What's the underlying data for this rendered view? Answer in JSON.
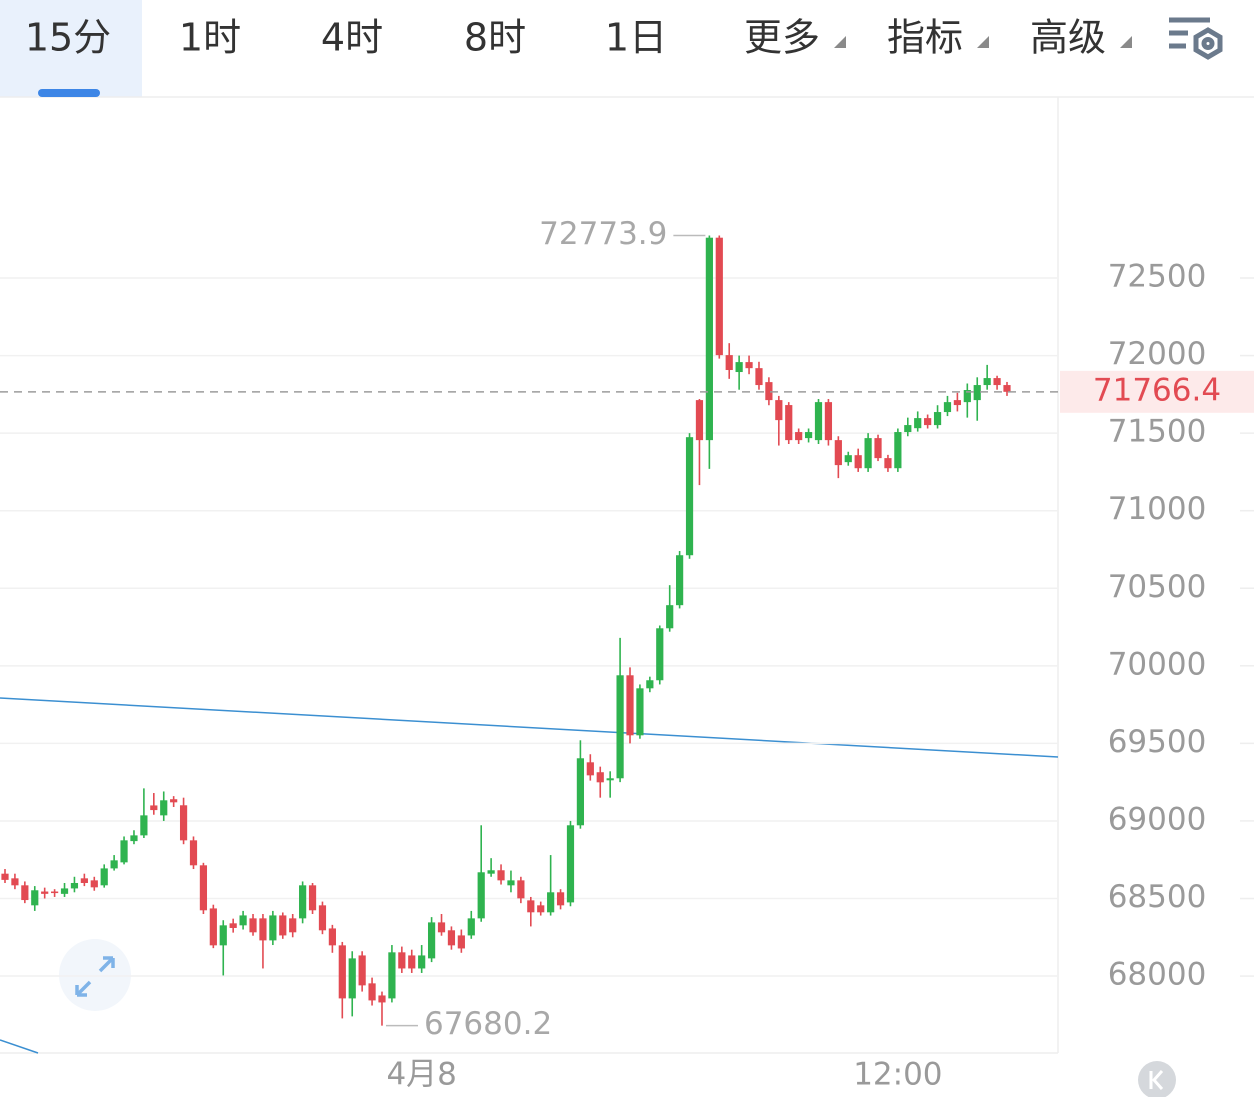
{
  "tabs": [
    {
      "label": "15分"
    },
    {
      "label": "1时"
    },
    {
      "label": "4时"
    },
    {
      "label": "8时"
    },
    {
      "label": "1日"
    },
    {
      "label": "更多",
      "dropdown": true
    },
    {
      "label": "指标",
      "dropdown": true
    },
    {
      "label": "高级",
      "dropdown": true
    }
  ],
  "active_tab": 0,
  "chart_data": {
    "type": "candlestick",
    "categories": [
      null,
      null,
      null,
      null,
      null,
      null,
      null,
      null,
      null,
      null,
      null,
      null,
      null,
      null,
      null,
      null,
      null,
      null,
      null,
      null,
      null,
      null,
      null,
      null,
      null,
      null,
      null,
      null,
      null,
      null,
      null,
      null,
      null,
      null,
      null,
      null,
      null,
      null,
      null,
      null,
      null,
      null,
      "4月8",
      null,
      null,
      null,
      null,
      null,
      null,
      null,
      null,
      null,
      null,
      null,
      null,
      null,
      null,
      null,
      null,
      null,
      null,
      null,
      null,
      null,
      null,
      null,
      null,
      null,
      null,
      null,
      null,
      null,
      null,
      null,
      null,
      null,
      null,
      null,
      null,
      null,
      null,
      null,
      null,
      null,
      null,
      null,
      null,
      null,
      null,
      null,
      "12:00",
      null,
      null,
      null,
      null,
      null,
      null,
      null,
      null,
      null,
      null,
      null
    ],
    "open": [
      68660,
      68630,
      68585,
      68456,
      68545,
      68545,
      68530,
      68565,
      68630,
      68617,
      68585,
      68694,
      68733,
      68870,
      68907,
      69100,
      69036,
      69140,
      69101,
      68875,
      68714,
      68436,
      68198,
      68340,
      68327,
      68372,
      68372,
      68230,
      68391,
      68372,
      68372,
      68585,
      68456,
      68307,
      68198,
      67856,
      68133,
      67953,
      67875,
      67856,
      68153,
      68133,
      68049,
      68114,
      68346,
      68295,
      68262,
      68262,
      68372,
      68660,
      68682,
      68585,
      68617,
      68488,
      68456,
      68411,
      68540,
      68475,
      68972,
      69378,
      69314,
      69262,
      69275,
      69939,
      69552,
      69855,
      69907,
      70242,
      70391,
      70713,
      71713,
      71455,
      72760,
      72003,
      71894,
      71958,
      71919,
      71829,
      71713,
      71681,
      71507,
      71468,
      71455,
      71700,
      71455,
      71313,
      71358,
      71274,
      71468,
      71339,
      71274,
      71507,
      71532,
      71597,
      71552,
      71636,
      71713,
      71700,
      71713,
      71810,
      71855,
      71810
    ],
    "high": [
      68690,
      68660,
      68610,
      68580,
      68570,
      68560,
      68600,
      68640,
      68660,
      68640,
      68720,
      68780,
      68900,
      68940,
      69210,
      69180,
      69190,
      69160,
      69150,
      68900,
      68730,
      68460,
      68360,
      68370,
      68420,
      68400,
      68400,
      68420,
      68410,
      68400,
      68610,
      68600,
      68480,
      68330,
      68220,
      68160,
      68160,
      67990,
      67900,
      68200,
      68190,
      68170,
      68200,
      68380,
      68400,
      68320,
      68300,
      68420,
      68972,
      68760,
      68720,
      68680,
      68640,
      68510,
      68480,
      68780,
      68560,
      69000,
      69520,
      69430,
      69350,
      69320,
      70180,
      69990,
      69880,
      69930,
      70260,
      70520,
      70740,
      71500,
      71720,
      72773.9,
      72773.9,
      72080,
      72000,
      72000,
      71960,
      71860,
      71740,
      71700,
      71530,
      71530,
      71720,
      71720,
      71480,
      71380,
      71400,
      71500,
      71490,
      71360,
      71530,
      71600,
      71640,
      71620,
      71680,
      71740,
      71760,
      71820,
      71860,
      71940,
      71870,
      71830
    ],
    "low": [
      68600,
      68560,
      68470,
      68420,
      68500,
      68510,
      68510,
      68540,
      68580,
      68550,
      68570,
      68680,
      68720,
      68850,
      68890,
      69040,
      69000,
      69090,
      68850,
      68690,
      68400,
      68180,
      68004,
      68280,
      68300,
      68260,
      68049,
      68200,
      68240,
      68250,
      68340,
      68400,
      68270,
      68150,
      67727,
      67740,
      67900,
      67810,
      67680.2,
      67830,
      68020,
      68020,
      68020,
      68090,
      68260,
      68170,
      68150,
      68240,
      68350,
      68640,
      68590,
      68540,
      68470,
      68320,
      68390,
      68390,
      68430,
      68450,
      68950,
      69260,
      69150,
      69150,
      69250,
      69500,
      69530,
      69830,
      69880,
      70220,
      70370,
      70690,
      71165,
      71270,
      71980,
      71850,
      71780,
      71880,
      71780,
      71680,
      71420,
      71430,
      71430,
      71440,
      71430,
      71420,
      71210,
      71290,
      71250,
      71250,
      71320,
      71250,
      71250,
      71480,
      71510,
      71530,
      71530,
      71610,
      71640,
      71600,
      71580,
      71780,
      71780,
      71740
    ],
    "close": [
      68620,
      68585,
      68490,
      68553,
      68530,
      68535,
      68565,
      68600,
      68600,
      68572,
      68694,
      68746,
      68875,
      68907,
      69036,
      69070,
      69133,
      69120,
      68875,
      68714,
      68424,
      68198,
      68327,
      68310,
      68391,
      68282,
      68230,
      68391,
      68262,
      68282,
      68585,
      68424,
      68295,
      68198,
      67856,
      68114,
      67940,
      67843,
      67830,
      68153,
      68049,
      68049,
      68133,
      68346,
      68282,
      68198,
      68178,
      68372,
      68669,
      68682,
      68617,
      68617,
      68501,
      68411,
      68411,
      68540,
      68456,
      68972,
      69404,
      69294,
      69249,
      69275,
      69939,
      69552,
      69855,
      69907,
      70242,
      70391,
      70713,
      71474,
      71455,
      72760,
      72003,
      71907,
      71958,
      71919,
      71810,
      71713,
      71584,
      71455,
      71455,
      71507,
      71700,
      71455,
      71294,
      71358,
      71274,
      71468,
      71339,
      71274,
      71507,
      71552,
      71597,
      71552,
      71636,
      71700,
      71681,
      71778,
      71810,
      71855,
      71810,
      71766.4
    ],
    "up_color": "#2fb34f",
    "down_color": "#e24a52",
    "ylim": [
      67504,
      73667
    ],
    "yticks": [
      68000,
      68500,
      69000,
      69500,
      70000,
      70500,
      71000,
      71500,
      72000,
      72500
    ],
    "grid": true,
    "max_index": 71,
    "min_index": 38
  }
}
